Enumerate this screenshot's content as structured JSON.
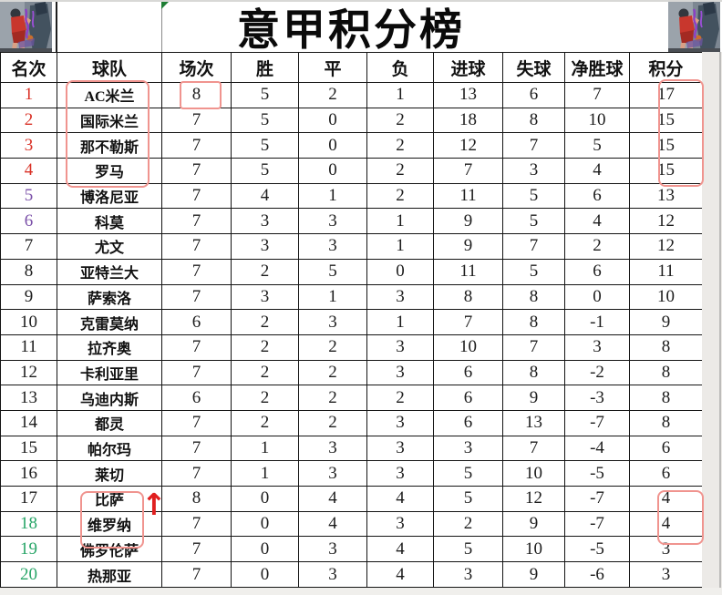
{
  "title": "意甲积分榜",
  "chart_data": {
    "type": "table",
    "title": "意甲积分榜",
    "columns": [
      "名次",
      "球队",
      "场次",
      "胜",
      "平",
      "负",
      "进球",
      "失球",
      "净胜球",
      "积分"
    ],
    "rows": [
      {
        "values": [
          "1",
          "AC米兰",
          "8",
          "5",
          "2",
          "1",
          "13",
          "6",
          "7",
          "17"
        ],
        "rank_color": "#d93025"
      },
      {
        "values": [
          "2",
          "国际米兰",
          "7",
          "5",
          "0",
          "2",
          "18",
          "8",
          "10",
          "15"
        ],
        "rank_color": "#d93025"
      },
      {
        "values": [
          "3",
          "那不勒斯",
          "7",
          "5",
          "0",
          "2",
          "12",
          "7",
          "5",
          "15"
        ],
        "rank_color": "#d93025"
      },
      {
        "values": [
          "4",
          "罗马",
          "7",
          "5",
          "0",
          "2",
          "7",
          "3",
          "4",
          "15"
        ],
        "rank_color": "#d93025"
      },
      {
        "values": [
          "5",
          "博洛尼亚",
          "7",
          "4",
          "1",
          "2",
          "11",
          "5",
          "6",
          "13"
        ],
        "rank_color": "#7a4fa8"
      },
      {
        "values": [
          "6",
          "科莫",
          "7",
          "3",
          "3",
          "1",
          "9",
          "5",
          "4",
          "12"
        ],
        "rank_color": "#7a4fa8"
      },
      {
        "values": [
          "7",
          "尤文",
          "7",
          "3",
          "3",
          "1",
          "9",
          "7",
          "2",
          "12"
        ],
        "rank_color": "#1c1c1c"
      },
      {
        "values": [
          "8",
          "亚特兰大",
          "7",
          "2",
          "5",
          "0",
          "11",
          "5",
          "6",
          "11"
        ],
        "rank_color": "#1c1c1c"
      },
      {
        "values": [
          "9",
          "萨索洛",
          "7",
          "3",
          "1",
          "3",
          "8",
          "8",
          "0",
          "10"
        ],
        "rank_color": "#1c1c1c"
      },
      {
        "values": [
          "10",
          "克雷莫纳",
          "6",
          "2",
          "3",
          "1",
          "7",
          "8",
          "-1",
          "9"
        ],
        "rank_color": "#1c1c1c"
      },
      {
        "values": [
          "11",
          "拉齐奥",
          "7",
          "2",
          "2",
          "3",
          "10",
          "7",
          "3",
          "8"
        ],
        "rank_color": "#1c1c1c"
      },
      {
        "values": [
          "12",
          "卡利亚里",
          "7",
          "2",
          "2",
          "3",
          "6",
          "8",
          "-2",
          "8"
        ],
        "rank_color": "#1c1c1c"
      },
      {
        "values": [
          "13",
          "乌迪内斯",
          "6",
          "2",
          "2",
          "2",
          "6",
          "9",
          "-3",
          "8"
        ],
        "rank_color": "#1c1c1c"
      },
      {
        "values": [
          "14",
          "都灵",
          "7",
          "2",
          "2",
          "3",
          "6",
          "13",
          "-7",
          "8"
        ],
        "rank_color": "#1c1c1c"
      },
      {
        "values": [
          "15",
          "帕尔玛",
          "7",
          "1",
          "3",
          "3",
          "3",
          "7",
          "-4",
          "6"
        ],
        "rank_color": "#1c1c1c"
      },
      {
        "values": [
          "16",
          "莱切",
          "7",
          "1",
          "3",
          "3",
          "5",
          "10",
          "-5",
          "6"
        ],
        "rank_color": "#1c1c1c"
      },
      {
        "values": [
          "17",
          "比萨",
          "8",
          "0",
          "4",
          "4",
          "5",
          "12",
          "-7",
          "4"
        ],
        "rank_color": "#1c1c1c"
      },
      {
        "values": [
          "18",
          "维罗纳",
          "7",
          "0",
          "4",
          "3",
          "2",
          "9",
          "-7",
          "4"
        ],
        "rank_color": "#27a567"
      },
      {
        "values": [
          "19",
          "佛罗伦萨",
          "7",
          "0",
          "3",
          "4",
          "5",
          "10",
          "-5",
          "3"
        ],
        "rank_color": "#27a567"
      },
      {
        "values": [
          "20",
          "热那亚",
          "7",
          "0",
          "3",
          "4",
          "3",
          "9",
          "-6",
          "3"
        ],
        "rank_color": "#27a567"
      }
    ],
    "layout": {
      "grid": "on",
      "header_row": true
    }
  },
  "colors": {
    "rank_top4": "#d93025",
    "rank_5_6": "#7a4fa8",
    "rank_mid": "#1c1c1c",
    "rank_bottom3": "#27a567",
    "highlight_box": "#f0948f",
    "arrow": "#e01f1f",
    "comment_marker": "#1e7e34"
  },
  "icons": {
    "up_arrow": "↑",
    "comment_marker": "green-corner-triangle",
    "corner_image": "basketball-players-illustration"
  }
}
